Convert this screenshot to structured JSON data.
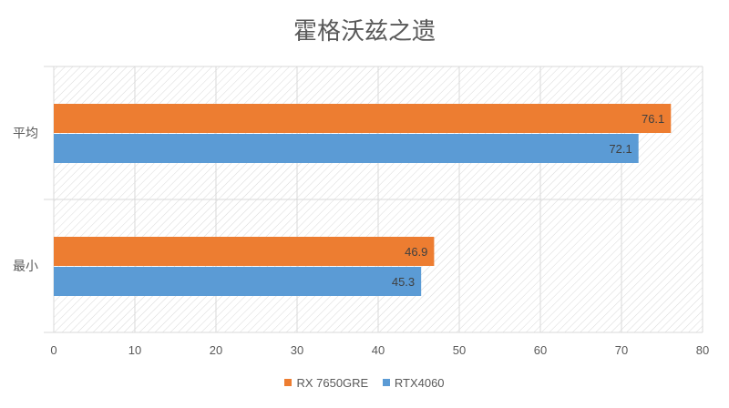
{
  "chart_data": {
    "type": "bar",
    "orientation": "horizontal",
    "title": "霍格沃兹之遗",
    "categories": [
      "平均",
      "最小"
    ],
    "series": [
      {
        "name": "RX 7650GRE",
        "values": [
          76.1,
          46.9
        ],
        "color": "#ED7D31"
      },
      {
        "name": "RTX4060",
        "values": [
          72.1,
          45.3
        ],
        "color": "#5B9BD5"
      }
    ],
    "xlim": [
      0,
      80
    ],
    "xticks": [
      0,
      10,
      20,
      30,
      40,
      50,
      60,
      70,
      80
    ],
    "grid": true,
    "plot_background": "diagonal hatch",
    "legend_placement": "bottom",
    "data_labels": true
  }
}
